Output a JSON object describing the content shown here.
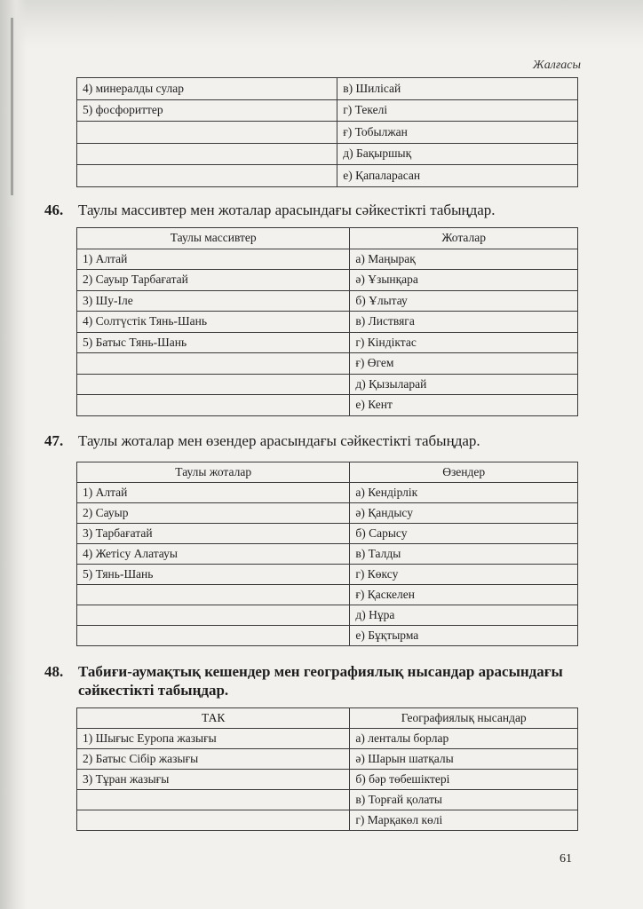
{
  "continuation_label": "Жалғасы",
  "continued_table": {
    "left_col_pct": 52,
    "rows": [
      [
        "4) минералды сулар",
        "в) Шилісай"
      ],
      [
        "5) фосфориттер",
        "г) Текелі"
      ],
      [
        "",
        "ғ) Тобылжан"
      ],
      [
        "",
        "д) Бақыршық"
      ],
      [
        "",
        "е) Қапаларасан"
      ]
    ]
  },
  "questions": [
    {
      "number": "46.",
      "text": "Таулы массивтер мен жоталар арасындағы сәйкестікті табыңдар.",
      "bold": false,
      "headers": [
        "Таулы массивтер",
        "Жоталар"
      ],
      "rows": [
        [
          "1) Алтай",
          "а) Маңырақ"
        ],
        [
          "2) Сауыр Тарбағатай",
          "ә) Ұзынқара"
        ],
        [
          "3) Шу-Іле",
          "б) Ұлытау"
        ],
        [
          "4) Солтүстік Тянь-Шань",
          "в) Листвяга"
        ],
        [
          "5) Батыс Тянь-Шань",
          "г) Кіндіктас"
        ],
        [
          "",
          "ғ) Өгем"
        ],
        [
          "",
          "д) Қызыларай"
        ],
        [
          "",
          "е) Кент"
        ]
      ]
    },
    {
      "number": "47.",
      "text": "Таулы жоталар мен өзендер арасындағы сәйкестікті табыңдар.",
      "bold": false,
      "headers": [
        "Таулы жоталар",
        "Өзендер"
      ],
      "rows": [
        [
          "1) Алтай",
          "а) Кендірлік"
        ],
        [
          "2) Сауыр",
          "ә) Қандысу"
        ],
        [
          "3) Тарбағатай",
          "б) Сарысу"
        ],
        [
          "4) Жетісу Алатауы",
          "в) Талды"
        ],
        [
          "5) Тянь-Шань",
          "г) Көксу"
        ],
        [
          "",
          "ғ) Қаскелен"
        ],
        [
          "",
          "д) Нұра"
        ],
        [
          "",
          "е) Бұқтырма"
        ]
      ]
    },
    {
      "number": "48.",
      "text": "Табиғи-аумақтық кешендер мен географиялық нысандар арасындағы сәйкестікті табыңдар.",
      "bold": true,
      "headers": [
        "ТАК",
        "Географиялық нысандар"
      ],
      "rows": [
        [
          "1) Шығыс Еуропа жазығы",
          "а) ленталы борлар"
        ],
        [
          "2) Батыс Сібір жазығы",
          "ә) Шарын шатқалы"
        ],
        [
          "3) Тұран жазығы",
          "б) бәр төбешіктері"
        ],
        [
          "",
          "в) Торғай қолаты"
        ],
        [
          "",
          "г) Марқакөл көлі"
        ]
      ]
    }
  ],
  "page_number": "61"
}
